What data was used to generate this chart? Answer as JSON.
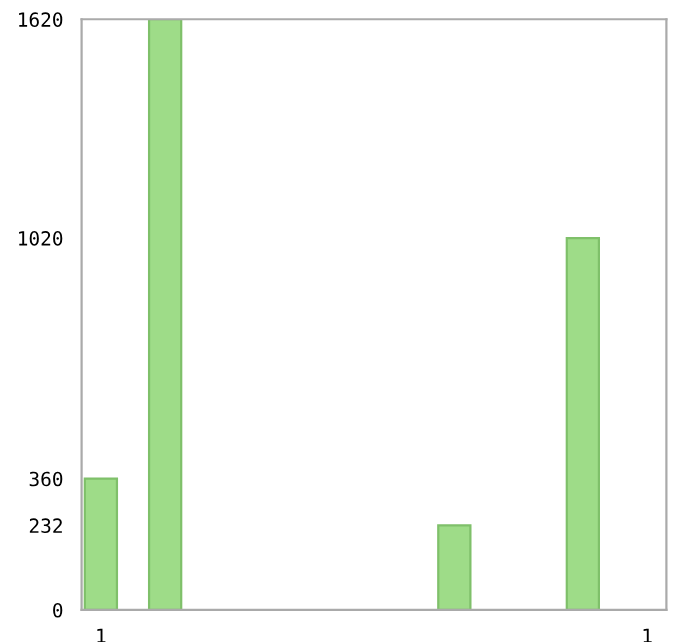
{
  "chart_data": {
    "type": "bar",
    "categories": [
      "1",
      null,
      null,
      null,
      null,
      null,
      null,
      null,
      null,
      null,
      null,
      null,
      null,
      null,
      null,
      null,
      null,
      "1"
    ],
    "values": [
      360,
      null,
      1620,
      null,
      null,
      null,
      null,
      null,
      null,
      null,
      null,
      232,
      null,
      null,
      null,
      1020,
      null,
      null
    ],
    "color": "#9edc88",
    "ylim": [
      0,
      1620
    ],
    "yticks": [
      0,
      232,
      360,
      1020,
      1620
    ],
    "grid": false
  }
}
